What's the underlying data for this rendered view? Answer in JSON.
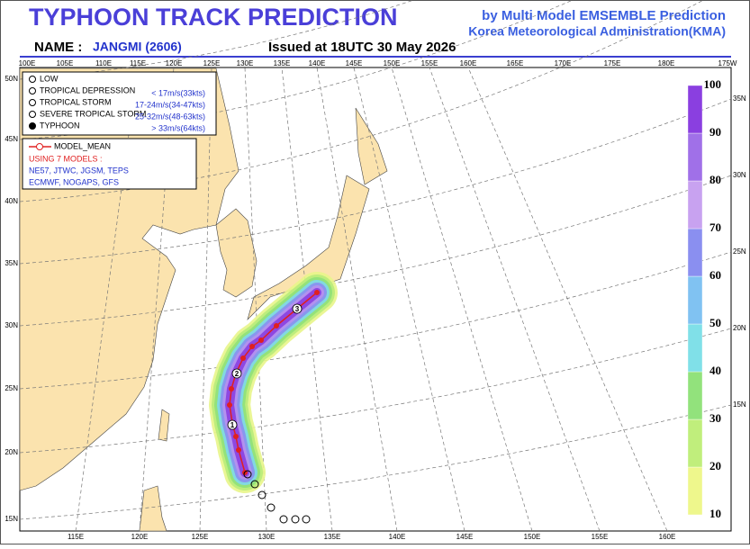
{
  "header": {
    "title": "TYPHOON  TRACK  PREDICTION",
    "subtitle_1": "by Multi Model EMSEMBLE Prediction",
    "subtitle_2": "Korea Meteorological Administration(KMA)",
    "name_label": "NAME :",
    "name": "JANGMI (2606)",
    "issued": "Issued at  18UTC 30 May 2026"
  },
  "map": {
    "top_lon_labels": [
      "100E",
      "105E",
      "110E",
      "115E",
      "120E",
      "125E",
      "130E",
      "135E",
      "140E",
      "145E",
      "150E",
      "155E",
      "160E",
      "165E",
      "170E",
      "175E",
      "180E",
      "175W"
    ],
    "bottom_lon_labels": [
      "115E",
      "120E",
      "125E",
      "130E",
      "135E",
      "140E",
      "145E",
      "150E",
      "155E",
      "160E"
    ],
    "left_lat_labels": [
      "50N",
      "45N",
      "40N",
      "35N",
      "30N",
      "25N",
      "20N",
      "15N"
    ],
    "right_lat_labels": [
      "35N",
      "30N",
      "25N",
      "20N",
      "15N"
    ],
    "track_day_labels": [
      "1",
      "2",
      "3"
    ]
  },
  "legend": {
    "intensity": [
      {
        "name": "LOW"
      },
      {
        "name": "TROPICAL DEPRESSION",
        "range": "< 17m/s(33kts)"
      },
      {
        "name": "TROPICAL STORM",
        "range": "17-24m/s(34-47kts)"
      },
      {
        "name": "SEVERE TROPICAL STORM",
        "range": "25-32m/s(48-63kts)"
      },
      {
        "name": "TYPHOON",
        "range": "> 33m/s(64kts)"
      }
    ]
  },
  "models": {
    "mean_label": "MODEL_MEAN",
    "using": "USING 7 MODELS :",
    "list_1": "NE57, JTWC, JGSM, TEPS",
    "list_2": "ECMWF, NOGAPS, GFS"
  },
  "colorbar": {
    "labels": [
      10,
      20,
      30,
      40,
      50,
      60,
      70,
      80,
      90,
      100
    ]
  }
}
